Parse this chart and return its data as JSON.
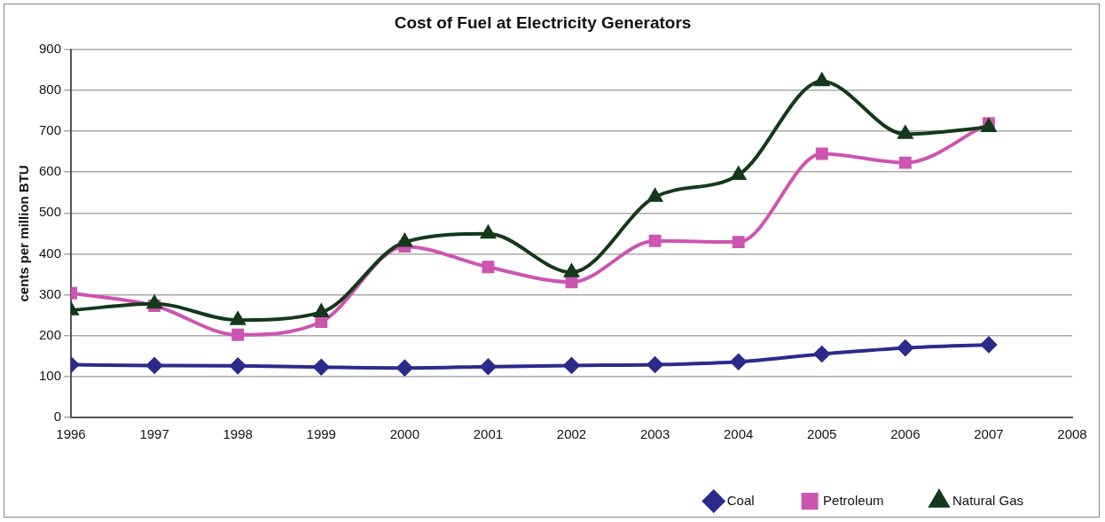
{
  "chart_data": {
    "type": "line",
    "title": "Cost of Fuel at Electricity Generators",
    "ylabel": "cents per million BTU",
    "x": [
      1996,
      1997,
      1998,
      1999,
      2000,
      2001,
      2002,
      2003,
      2004,
      2005,
      2006,
      2007
    ],
    "xlim": [
      1996,
      2008
    ],
    "xticks": [
      1996,
      1997,
      1998,
      1999,
      2000,
      2001,
      2002,
      2003,
      2004,
      2005,
      2006,
      2007,
      2008
    ],
    "ylim": [
      0,
      900
    ],
    "yticks": [
      0,
      100,
      200,
      300,
      400,
      500,
      600,
      700,
      800,
      900
    ],
    "grid": "y",
    "legend": "bottom right",
    "line_style": "solid",
    "series": [
      {
        "name": "Coal",
        "color": "#2b2b8c",
        "marker": "diamond",
        "values": [
          129,
          127,
          126,
          123,
          121,
          124,
          127,
          129,
          136,
          155,
          170,
          178
        ]
      },
      {
        "name": "Petroleum",
        "color": "#cc55b0",
        "marker": "square",
        "values": [
          304,
          273,
          202,
          234,
          418,
          368,
          331,
          432,
          429,
          645,
          623,
          719
        ]
      },
      {
        "name": "Natural Gas",
        "color": "#14391a",
        "marker": "triangle",
        "values": [
          262,
          278,
          238,
          257,
          429,
          449,
          355,
          539,
          593,
          822,
          693,
          710
        ]
      }
    ]
  }
}
